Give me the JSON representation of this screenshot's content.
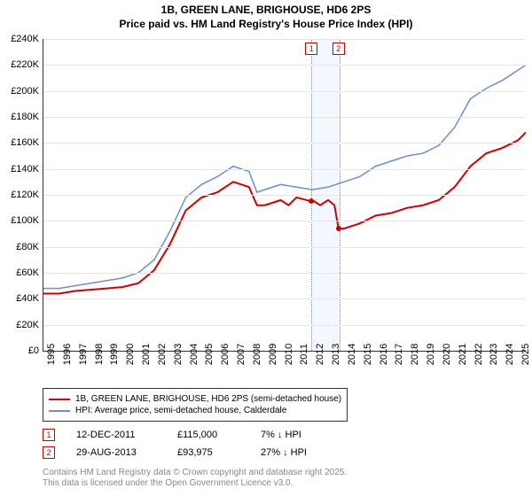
{
  "title_line1": "1B, GREEN LANE, BRIGHOUSE, HD6 2PS",
  "title_line2": "Price paid vs. HM Land Registry's House Price Index (HPI)",
  "chart": {
    "type": "line",
    "xlim": [
      1995,
      2025.5
    ],
    "ylim": [
      0,
      240000
    ],
    "ytick_step": 20000,
    "y_tick_labels": [
      "£0",
      "£20K",
      "£40K",
      "£60K",
      "£80K",
      "£100K",
      "£120K",
      "£140K",
      "£160K",
      "£180K",
      "£200K",
      "£220K",
      "£240K"
    ],
    "x_ticks": [
      1995,
      1996,
      1997,
      1998,
      1999,
      2000,
      2001,
      2002,
      2003,
      2004,
      2005,
      2006,
      2007,
      2008,
      2009,
      2010,
      2011,
      2012,
      2013,
      2014,
      2015,
      2016,
      2017,
      2018,
      2019,
      2020,
      2021,
      2022,
      2023,
      2024,
      2025
    ],
    "background_color": "#ffffff",
    "grid_color": "#e5e5e5",
    "series": [
      {
        "name": "price_paid",
        "label": "1B, GREEN LANE, BRIGHOUSE, HD6 2PS (semi-detached house)",
        "color": "#cc0000",
        "line_width": 2,
        "points": [
          [
            1995,
            44000
          ],
          [
            1996,
            44000
          ],
          [
            1997,
            46000
          ],
          [
            1998,
            47000
          ],
          [
            1999,
            48000
          ],
          [
            2000,
            49000
          ],
          [
            2001,
            52000
          ],
          [
            2002,
            62000
          ],
          [
            2003,
            82000
          ],
          [
            2004,
            108000
          ],
          [
            2005,
            118000
          ],
          [
            2006,
            122000
          ],
          [
            2007,
            130000
          ],
          [
            2008,
            126000
          ],
          [
            2008.5,
            112000
          ],
          [
            2009,
            112000
          ],
          [
            2010,
            116000
          ],
          [
            2010.5,
            112000
          ],
          [
            2011,
            118000
          ],
          [
            2011.95,
            115000
          ],
          [
            2012,
            116000
          ],
          [
            2012.5,
            112000
          ],
          [
            2013,
            116000
          ],
          [
            2013.4,
            112000
          ],
          [
            2013.66,
            93975
          ],
          [
            2014,
            94000
          ],
          [
            2015,
            98000
          ],
          [
            2016,
            104000
          ],
          [
            2017,
            106000
          ],
          [
            2018,
            110000
          ],
          [
            2019,
            112000
          ],
          [
            2020,
            116000
          ],
          [
            2021,
            126000
          ],
          [
            2022,
            142000
          ],
          [
            2023,
            152000
          ],
          [
            2024,
            156000
          ],
          [
            2025,
            162000
          ],
          [
            2025.5,
            168000
          ]
        ]
      },
      {
        "name": "hpi",
        "label": "HPI: Average price, semi-detached house, Calderdale",
        "color": "#6a8fd4",
        "line_width": 1.5,
        "points": [
          [
            1995,
            48000
          ],
          [
            1996,
            48000
          ],
          [
            1997,
            50000
          ],
          [
            1998,
            52000
          ],
          [
            1999,
            54000
          ],
          [
            2000,
            56000
          ],
          [
            2001,
            60000
          ],
          [
            2002,
            70000
          ],
          [
            2003,
            92000
          ],
          [
            2004,
            118000
          ],
          [
            2005,
            128000
          ],
          [
            2006,
            134000
          ],
          [
            2007,
            142000
          ],
          [
            2008,
            138000
          ],
          [
            2008.5,
            122000
          ],
          [
            2009,
            124000
          ],
          [
            2010,
            128000
          ],
          [
            2011,
            126000
          ],
          [
            2012,
            124000
          ],
          [
            2013,
            126000
          ],
          [
            2014,
            130000
          ],
          [
            2015,
            134000
          ],
          [
            2016,
            142000
          ],
          [
            2017,
            146000
          ],
          [
            2018,
            150000
          ],
          [
            2019,
            152000
          ],
          [
            2020,
            158000
          ],
          [
            2021,
            172000
          ],
          [
            2022,
            194000
          ],
          [
            2023,
            202000
          ],
          [
            2024,
            208000
          ],
          [
            2025,
            216000
          ],
          [
            2025.5,
            220000
          ]
        ]
      }
    ],
    "event_markers": [
      {
        "id": "1",
        "x": 2011.95,
        "y": 115000
      },
      {
        "id": "2",
        "x": 2013.66,
        "y": 93975
      }
    ],
    "highlight_band": {
      "x_start": 2011.95,
      "x_end": 2013.66
    }
  },
  "legend": {
    "items": [
      {
        "color": "#cc0000",
        "label": "1B, GREEN LANE, BRIGHOUSE, HD6 2PS (semi-detached house)"
      },
      {
        "color": "#6a8fd4",
        "label": "HPI: Average price, semi-detached house, Calderdale"
      }
    ]
  },
  "events": [
    {
      "id": "1",
      "date": "12-DEC-2011",
      "price": "£115,000",
      "delta": "7% ↓ HPI"
    },
    {
      "id": "2",
      "date": "29-AUG-2013",
      "price": "£93,975",
      "delta": "27% ↓ HPI"
    }
  ],
  "footer_line1": "Contains HM Land Registry data © Crown copyright and database right 2025.",
  "footer_line2": "This data is licensed under the Open Government Licence v3.0."
}
